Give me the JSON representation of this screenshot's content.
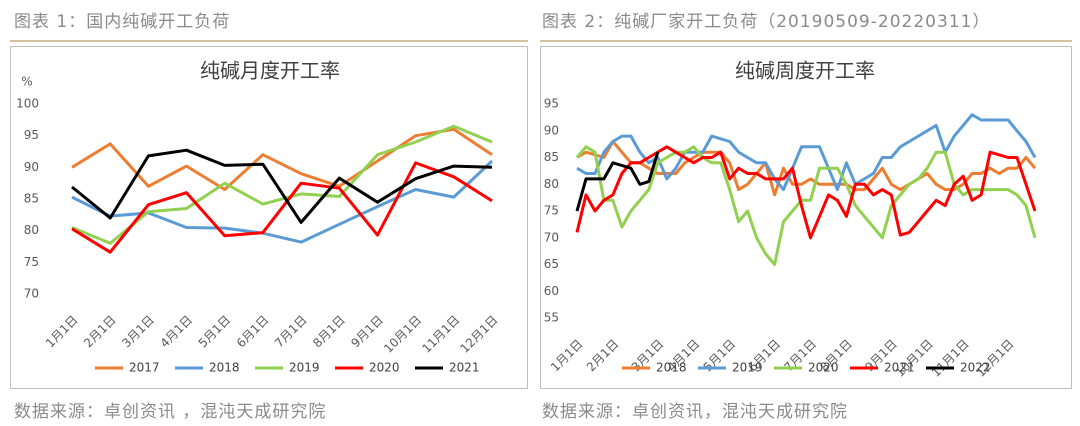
{
  "figures": [
    {
      "caption": "图表 1：国内纯碱开工负荷",
      "source": "数据来源：卓创资讯 ，混沌天成研究院"
    },
    {
      "caption": "图表 2：纯碱厂家开工负荷（20190509-20220311）",
      "source": "数据来源：卓创资讯，混沌天成研究院"
    }
  ],
  "chart_data": [
    {
      "type": "line",
      "title": "纯碱月度开工率",
      "ylabel": "%",
      "categories": [
        "1月1日",
        "2月1日",
        "3月1日",
        "4月1日",
        "5月1日",
        "6月1日",
        "7月1日",
        "8月1日",
        "9月1日",
        "10月1日",
        "11月1日",
        "12月1日"
      ],
      "ylim": [
        70,
        100
      ],
      "yticks": [
        70,
        75,
        80,
        85,
        90,
        95,
        100
      ],
      "grid": false,
      "legend": "bottom",
      "series": [
        {
          "name": "2017",
          "color": "#ed7d31",
          "values": [
            90,
            93.7,
            87,
            90.2,
            86.5,
            92,
            89,
            87,
            91,
            95,
            96,
            92
          ]
        },
        {
          "name": "2018",
          "color": "#5b9bd5",
          "values": [
            85.3,
            82.3,
            82.8,
            80.5,
            80.4,
            79.6,
            78.2,
            81,
            83.8,
            86.5,
            85.3,
            91
          ]
        },
        {
          "name": "2019",
          "color": "#92d050",
          "values": [
            80.5,
            78,
            83,
            83.5,
            87.5,
            84.2,
            85.8,
            85.4,
            92,
            94,
            96.5,
            94
          ]
        },
        {
          "name": "2020",
          "color": "#ff0000",
          "values": [
            80.3,
            76.6,
            84.1,
            86,
            79.2,
            79.7,
            87.5,
            86.7,
            79.3,
            90.7,
            88.5,
            84.7
          ]
        },
        {
          "name": "2021",
          "color": "#000000",
          "values": [
            86.9,
            82,
            91.8,
            92.7,
            90.3,
            90.5,
            81.3,
            88.3,
            84.5,
            88.2,
            90.2,
            90
          ]
        }
      ]
    },
    {
      "type": "line",
      "title": "纯碱周度开工率",
      "categories": [
        "1月1日",
        null,
        null,
        null,
        "2月1日",
        null,
        null,
        null,
        null,
        "3月1日",
        null,
        null,
        null,
        "4月1日",
        null,
        null,
        null,
        "5月1日",
        null,
        null,
        null,
        null,
        "6月1日",
        null,
        null,
        null,
        "7月1日",
        null,
        null,
        null,
        "8月1日",
        null,
        null,
        null,
        null,
        "9月1日",
        null,
        null,
        null,
        "10月1日",
        null,
        null,
        null,
        "11月1日",
        null,
        null,
        null,
        null,
        "12月1日",
        null,
        null,
        null
      ],
      "ylim": [
        55,
        95
      ],
      "yticks": [
        55,
        60,
        65,
        70,
        75,
        80,
        85,
        90,
        95
      ],
      "grid": false,
      "legend": "bottom",
      "series": [
        {
          "name": "2018",
          "color": "#ed7d31",
          "values": [
            85,
            86,
            85.5,
            85,
            88,
            86,
            84,
            84,
            83,
            82,
            82,
            82,
            84,
            85,
            86,
            86,
            86,
            84,
            79,
            80,
            82,
            84,
            78,
            83,
            80,
            80,
            81,
            80,
            80,
            80,
            80,
            79,
            79,
            81,
            83,
            80,
            79,
            80,
            81,
            82,
            80,
            79,
            79,
            80,
            82,
            82,
            83,
            82,
            83,
            83,
            85,
            83
          ]
        },
        {
          "name": "2019",
          "color": "#5b9bd5",
          "values": [
            83,
            82,
            82,
            86,
            88,
            89,
            89,
            86,
            84,
            85,
            81,
            83,
            86,
            86,
            86,
            89,
            88.5,
            88,
            86,
            85,
            84,
            84,
            81,
            79,
            83,
            87,
            87,
            87,
            83,
            79,
            84,
            80,
            81,
            82,
            85,
            85,
            87,
            88,
            89,
            90,
            91,
            86,
            89,
            91,
            93,
            92,
            92,
            92,
            92,
            90,
            88,
            85
          ]
        },
        {
          "name": "2020",
          "color": "#92d050",
          "values": [
            85,
            87,
            86,
            77,
            77,
            72,
            75,
            77,
            79,
            84,
            85,
            86,
            86,
            87,
            85,
            84,
            84,
            79,
            73,
            75,
            70,
            67,
            65,
            73,
            75,
            77,
            77,
            83,
            83,
            83,
            80,
            76,
            74,
            72,
            70,
            76,
            78,
            80,
            81,
            83,
            86,
            86,
            80,
            78,
            79,
            79,
            79,
            79,
            79,
            78,
            76,
            70
          ]
        },
        {
          "name": "2021",
          "color": "#ff0000",
          "values": [
            71,
            78,
            75,
            77,
            78,
            82,
            84,
            84,
            85,
            86,
            87,
            86,
            85,
            84,
            85,
            85,
            86,
            81,
            83,
            82,
            82,
            81,
            81,
            81,
            83,
            76,
            70,
            74,
            78,
            77,
            74,
            80,
            80,
            78,
            79,
            78,
            70.5,
            71,
            73,
            75,
            77,
            76,
            80,
            81.5,
            77,
            78,
            86,
            85.5,
            85,
            85,
            80,
            75
          ]
        },
        {
          "name": "2022",
          "color": "#000000",
          "values": [
            75,
            81,
            81,
            81,
            84,
            83.5,
            83,
            80,
            80.5,
            86,
            null,
            null,
            null,
            null,
            null,
            null,
            null,
            null,
            null,
            null,
            null,
            null,
            null,
            null,
            null,
            null,
            null,
            null,
            null,
            null,
            null,
            null,
            null,
            null,
            null,
            null,
            null,
            null,
            null,
            null,
            null,
            null,
            null,
            null,
            null,
            null,
            null,
            null,
            null,
            null,
            null,
            null
          ]
        }
      ]
    }
  ]
}
